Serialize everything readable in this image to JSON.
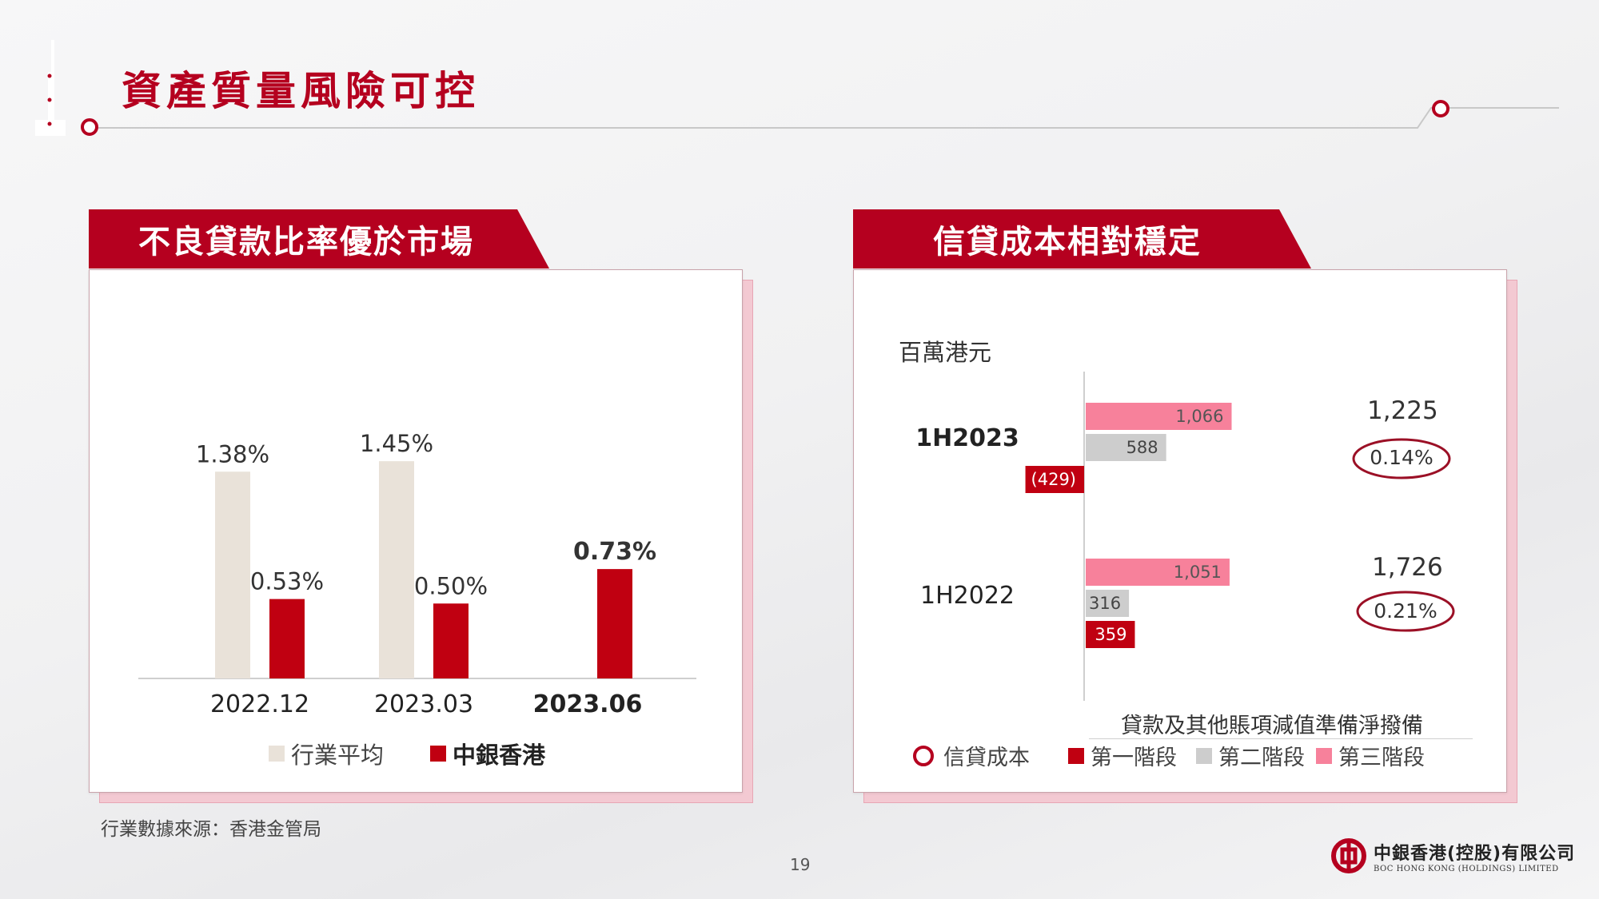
{
  "page": {
    "title": "資產質量風險可控",
    "page_number": "19",
    "footnote": "行業數據來源：香港金管局"
  },
  "brand": {
    "name_zh": "中銀香港(控股)有限公司",
    "name_en": "BOC HONG KONG (HOLDINGS) LIMITED",
    "accent": "#b5001f"
  },
  "left_panel": {
    "banner": "不良貸款比率優於市場",
    "legend": {
      "industry": "行業平均",
      "boc": "中銀香港"
    }
  },
  "right_panel": {
    "banner": "信貸成本相對穩定",
    "unit": "百萬港元",
    "legend": {
      "credit_cost": "信貸成本",
      "stage1": "第一階段",
      "stage2": "第二階段",
      "stage3": "第三階段"
    },
    "x_caption": "貸款及其他賬項減值準備淨撥備",
    "totals": [
      "1,225",
      "1,726"
    ],
    "credit_costs": [
      "0.14%",
      "0.21%"
    ]
  },
  "chart_data": [
    {
      "type": "bar",
      "orientation": "vertical",
      "categories": [
        "2022.12",
        "2023.03",
        "2023.06"
      ],
      "series": [
        {
          "name": "行業平均",
          "values": [
            1.38,
            1.45,
            null
          ],
          "labels": [
            "1.38%",
            "1.45%",
            ""
          ],
          "color": "#e9e2d9"
        },
        {
          "name": "中銀香港",
          "values": [
            0.53,
            0.5,
            0.73
          ],
          "labels": [
            "0.53%",
            "0.50%",
            "0.73%"
          ],
          "color": "#c00011"
        }
      ],
      "ylim": [
        0,
        1.6
      ],
      "grid": false,
      "legend_position": "bottom"
    },
    {
      "type": "bar",
      "orientation": "horizontal",
      "categories": [
        "1H2023",
        "1H2022"
      ],
      "series": [
        {
          "name": "第三階段",
          "values": [
            1066,
            1051
          ],
          "labels": [
            "1,066",
            "1,051"
          ],
          "color": "#f7819b"
        },
        {
          "name": "第二階段",
          "values": [
            588,
            316
          ],
          "labels": [
            "588",
            "316"
          ],
          "color": "#cdcdcd"
        },
        {
          "name": "第一階段",
          "values": [
            -429,
            359
          ],
          "labels": [
            "(429)",
            "359"
          ],
          "color": "#c00011"
        }
      ],
      "xlim": [
        -450,
        1150
      ],
      "grid": false,
      "legend_position": "bottom"
    }
  ]
}
